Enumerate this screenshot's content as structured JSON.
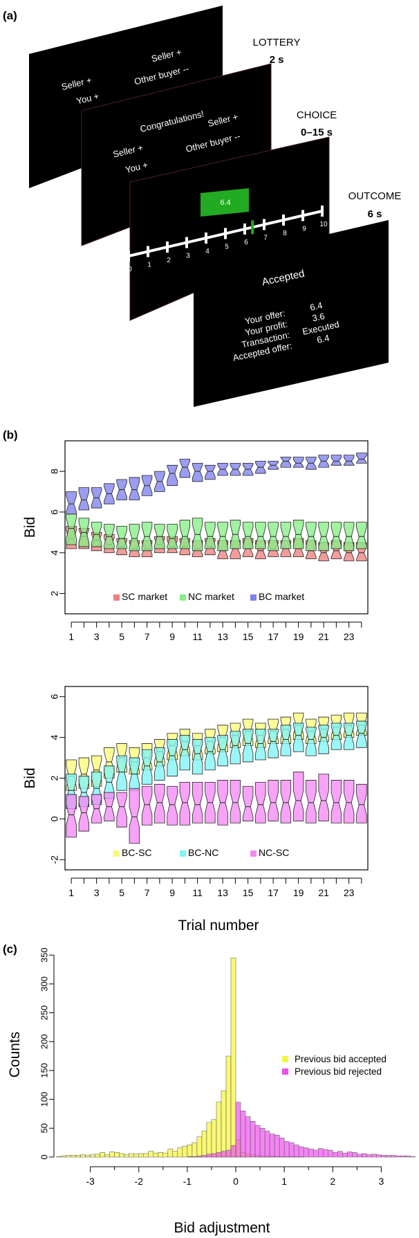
{
  "panel_a": {
    "label": "(a)",
    "stages": [
      {
        "name": "LOTTERY",
        "duration": "2 s"
      },
      {
        "name": "CHOICE",
        "duration": "0–15 s"
      },
      {
        "name": "OUTCOME",
        "duration": "6 s"
      }
    ],
    "screen_lottery": {
      "seller_1": "Seller +",
      "you": "You +",
      "seller_2": "Seller +",
      "other_buyer": "Other buyer --"
    },
    "screen_choice": {
      "header": "Congratulations!",
      "seller_1": "Seller +",
      "you": "You +",
      "seller_2": "Seller +",
      "other_buyer": "Other buyer --",
      "bid_box": "6.4",
      "scale_labels": [
        "0",
        "1",
        "2",
        "3",
        "4",
        "5",
        "6",
        "7",
        "8",
        "9",
        "10"
      ],
      "cursor_value": 6.4
    },
    "screen_outcome": {
      "header": "Accepted",
      "rows": [
        {
          "label": "Your offer:",
          "value": "6.4"
        },
        {
          "label": "Your profit:",
          "value": "3.6"
        },
        {
          "label": "Transaction:",
          "value": "Executed"
        },
        {
          "label": "Accepted offer:",
          "value": "6.4"
        }
      ]
    }
  },
  "panel_b": {
    "label": "(b)",
    "xlabel": "Trial number"
  },
  "panel_c": {
    "label": "(c)"
  },
  "colors": {
    "SC": "#f08080",
    "NC": "#86ee86",
    "BC": "#7f82ee",
    "BC-SC": "#fafa7a",
    "BC-NC": "#7ff5f5",
    "NC-SC": "#f589f5",
    "screen": "#000000",
    "green_box": "#22aa22",
    "accepted": "#f5f545",
    "rejected": "#f050f0"
  },
  "chart_data": [
    {
      "type": "boxplot",
      "id": "markets",
      "ylabel": "Bid",
      "ylim": [
        1,
        9.5
      ],
      "yticks": [
        2,
        4,
        6,
        8
      ],
      "x": [
        1,
        2,
        3,
        4,
        5,
        6,
        7,
        8,
        9,
        10,
        11,
        12,
        13,
        14,
        15,
        16,
        17,
        18,
        19,
        20,
        21,
        22,
        23,
        24
      ],
      "xticks": [
        1,
        3,
        5,
        7,
        9,
        11,
        13,
        15,
        17,
        19,
        21,
        23
      ],
      "legend_position": "bottom",
      "series": [
        {
          "name": "SC market",
          "key": "SC",
          "q1": [
            4.2,
            4.2,
            4.1,
            4.0,
            3.9,
            3.8,
            3.8,
            4.0,
            4.0,
            3.9,
            3.8,
            3.9,
            3.7,
            3.7,
            3.8,
            3.7,
            3.8,
            3.8,
            3.8,
            3.7,
            3.6,
            3.7,
            3.6,
            3.6
          ],
          "med": [
            4.7,
            4.8,
            4.6,
            4.4,
            4.3,
            4.2,
            4.2,
            4.4,
            4.3,
            4.3,
            4.2,
            4.3,
            4.1,
            4.2,
            4.2,
            4.1,
            4.2,
            4.2,
            4.2,
            4.1,
            4.0,
            4.1,
            4.0,
            4.0
          ],
          "q3": [
            5.3,
            5.2,
            5.0,
            4.9,
            4.7,
            4.6,
            4.6,
            4.8,
            4.8,
            4.7,
            4.6,
            4.7,
            4.6,
            4.6,
            4.7,
            4.6,
            4.6,
            4.6,
            4.7,
            4.6,
            4.5,
            4.6,
            4.5,
            4.5
          ]
        },
        {
          "name": "NC market",
          "key": "NC",
          "q1": [
            4.4,
            4.3,
            4.3,
            4.2,
            4.2,
            4.1,
            4.1,
            4.2,
            4.2,
            4.2,
            4.1,
            4.2,
            4.1,
            4.2,
            4.2,
            4.2,
            4.1,
            4.2,
            4.2,
            4.1,
            4.1,
            4.2,
            4.1,
            4.2
          ],
          "med": [
            5.2,
            5.0,
            4.9,
            4.8,
            4.7,
            4.7,
            4.8,
            4.8,
            4.7,
            4.8,
            4.9,
            4.8,
            4.8,
            4.9,
            4.8,
            4.8,
            4.8,
            4.8,
            4.9,
            4.8,
            4.8,
            4.8,
            4.8,
            4.8
          ],
          "q3": [
            5.9,
            5.7,
            5.5,
            5.4,
            5.3,
            5.4,
            5.5,
            5.4,
            5.4,
            5.6,
            5.7,
            5.5,
            5.5,
            5.6,
            5.5,
            5.5,
            5.5,
            5.5,
            5.6,
            5.5,
            5.5,
            5.5,
            5.5,
            5.5
          ]
        },
        {
          "name": "BC market",
          "key": "BC",
          "q1": [
            5.9,
            6.1,
            6.2,
            6.4,
            6.6,
            6.6,
            6.8,
            7.0,
            7.3,
            7.7,
            7.5,
            7.6,
            7.8,
            7.8,
            7.8,
            7.9,
            8.1,
            8.2,
            8.2,
            8.1,
            8.2,
            8.3,
            8.3,
            8.4
          ],
          "med": [
            6.4,
            6.6,
            6.7,
            6.9,
            7.1,
            7.1,
            7.3,
            7.5,
            7.9,
            8.2,
            8.0,
            8.0,
            8.1,
            8.1,
            8.1,
            8.2,
            8.3,
            8.5,
            8.4,
            8.4,
            8.5,
            8.5,
            8.5,
            8.6
          ],
          "q3": [
            7.0,
            7.2,
            7.2,
            7.4,
            7.6,
            7.7,
            7.8,
            8.0,
            8.3,
            8.6,
            8.4,
            8.3,
            8.4,
            8.4,
            8.4,
            8.5,
            8.5,
            8.7,
            8.7,
            8.7,
            8.8,
            8.8,
            8.8,
            8.9
          ]
        }
      ]
    },
    {
      "type": "boxplot",
      "id": "differences",
      "ylabel": "Bid",
      "ylim": [
        -2.5,
        6.5
      ],
      "yticks": [
        -2,
        0,
        2,
        4,
        6
      ],
      "x": [
        1,
        2,
        3,
        4,
        5,
        6,
        7,
        8,
        9,
        10,
        11,
        12,
        13,
        14,
        15,
        16,
        17,
        18,
        19,
        20,
        21,
        22,
        23,
        24
      ],
      "xticks": [
        1,
        3,
        5,
        7,
        9,
        11,
        13,
        15,
        17,
        19,
        21,
        23
      ],
      "legend_position": "bottom",
      "series": [
        {
          "name": "BC-SC",
          "key": "BC-SC",
          "q1": [
            1.4,
            1.5,
            1.6,
            2.0,
            2.3,
            2.2,
            2.4,
            2.6,
            2.9,
            3.1,
            2.9,
            3.2,
            3.3,
            3.5,
            3.6,
            3.5,
            3.7,
            3.7,
            3.9,
            3.7,
            3.8,
            3.9,
            4.0,
            4.1
          ],
          "med": [
            2.1,
            2.2,
            2.4,
            2.8,
            3.0,
            2.8,
            3.0,
            3.3,
            3.6,
            3.8,
            3.6,
            3.8,
            4.0,
            4.1,
            4.3,
            4.1,
            4.3,
            4.4,
            4.6,
            4.3,
            4.4,
            4.5,
            4.6,
            4.6
          ],
          "q3": [
            2.9,
            3.0,
            3.1,
            3.5,
            3.7,
            3.5,
            3.7,
            3.9,
            4.2,
            4.4,
            4.2,
            4.4,
            4.6,
            4.7,
            4.9,
            4.7,
            4.9,
            5.0,
            5.2,
            4.9,
            5.0,
            5.1,
            5.2,
            5.2
          ]
        },
        {
          "name": "BC-NC",
          "key": "BC-NC",
          "q1": [
            0.5,
            0.6,
            0.7,
            1.0,
            1.4,
            1.4,
            1.7,
            1.9,
            2.1,
            2.4,
            2.2,
            2.4,
            2.6,
            2.7,
            2.8,
            2.9,
            3.0,
            3.1,
            3.3,
            3.1,
            3.2,
            3.4,
            3.4,
            3.5
          ],
          "med": [
            1.4,
            1.3,
            1.5,
            1.8,
            2.3,
            2.2,
            2.6,
            2.8,
            3.1,
            3.4,
            3.2,
            3.3,
            3.4,
            3.6,
            3.7,
            3.7,
            3.8,
            3.9,
            4.1,
            3.9,
            4.0,
            4.1,
            4.1,
            4.2
          ],
          "q3": [
            2.2,
            2.1,
            2.3,
            2.6,
            3.1,
            3.0,
            3.4,
            3.5,
            3.9,
            4.1,
            3.9,
            4.0,
            4.1,
            4.3,
            4.4,
            4.4,
            4.4,
            4.6,
            4.7,
            4.5,
            4.6,
            4.7,
            4.7,
            4.8
          ]
        },
        {
          "name": "NC-SC",
          "key": "NC-SC",
          "q1": [
            -0.9,
            -0.6,
            -0.2,
            -0.1,
            -0.4,
            -1.2,
            -0.3,
            -0.2,
            -0.3,
            -0.3,
            -0.2,
            -0.2,
            -0.3,
            -0.2,
            -0.1,
            -0.2,
            -0.1,
            -0.2,
            -0.1,
            -0.2,
            -0.1,
            -0.2,
            -0.2,
            -0.2
          ],
          "med": [
            0.2,
            0.3,
            0.5,
            0.6,
            0.6,
            0.1,
            0.7,
            0.8,
            0.7,
            0.8,
            0.7,
            0.8,
            0.8,
            0.8,
            0.6,
            0.7,
            0.8,
            0.8,
            0.9,
            0.8,
            0.9,
            0.8,
            0.8,
            0.7
          ],
          "q3": [
            1.2,
            1.1,
            1.2,
            1.3,
            1.3,
            1.5,
            1.6,
            1.7,
            1.6,
            1.8,
            1.8,
            1.8,
            1.9,
            1.9,
            1.6,
            1.8,
            1.9,
            1.9,
            2.3,
            1.9,
            2.2,
            1.9,
            1.9,
            1.7
          ]
        }
      ]
    },
    {
      "type": "histogram",
      "id": "adjustment",
      "xlabel": "Bid adjustment",
      "ylabel": "Counts",
      "xlim": [
        -3.75,
        3.75
      ],
      "ylim": [
        0,
        355
      ],
      "xticks": [
        -3,
        -2,
        -1,
        0,
        1,
        2,
        3
      ],
      "yticks": [
        0,
        50,
        100,
        150,
        200,
        250,
        300,
        350
      ],
      "bin_width": 0.1,
      "legend_position": "right",
      "series": [
        {
          "name": "Previous bid accepted",
          "key": "accepted",
          "bin_starts": [
            -3.7,
            -3.6,
            -3.5,
            -3.4,
            -3.3,
            -3.2,
            -3.1,
            -3.0,
            -2.9,
            -2.8,
            -2.7,
            -2.6,
            -2.5,
            -2.4,
            -2.3,
            -2.2,
            -2.1,
            -2.0,
            -1.9,
            -1.8,
            -1.7,
            -1.6,
            -1.5,
            -1.4,
            -1.3,
            -1.2,
            -1.1,
            -1.0,
            -0.9,
            -0.8,
            -0.7,
            -0.6,
            -0.5,
            -0.4,
            -0.3,
            -0.2,
            -0.1,
            0.0,
            0.1,
            0.2,
            0.3,
            0.4,
            0.5,
            0.6,
            0.7,
            0.8,
            0.9,
            1.0,
            1.1,
            1.2,
            1.3,
            1.4,
            1.5,
            1.6,
            1.7,
            1.8,
            1.9,
            2.0,
            2.1,
            2.2,
            2.3,
            2.4,
            2.5,
            2.6,
            2.7,
            2.8,
            2.9,
            3.0,
            3.1,
            3.2,
            3.3,
            3.4,
            3.5,
            3.6
          ],
          "counts": [
            1,
            2,
            3,
            3,
            3,
            4,
            3,
            4,
            5,
            8,
            4,
            9,
            8,
            6,
            4,
            6,
            5,
            6,
            6,
            10,
            7,
            8,
            7,
            14,
            10,
            16,
            19,
            21,
            25,
            35,
            45,
            60,
            65,
            95,
            115,
            175,
            345,
            30,
            8,
            5,
            4,
            3,
            2,
            2,
            2,
            1,
            1,
            1,
            1,
            1,
            1,
            0,
            0,
            0,
            0,
            0,
            0,
            0,
            0,
            0,
            0,
            0,
            0,
            0,
            0,
            0,
            0,
            0,
            0,
            0,
            0,
            0,
            0,
            0
          ]
        },
        {
          "name": "Previous bid rejected",
          "key": "rejected",
          "bin_starts": [
            -3.7,
            -3.6,
            -3.5,
            -3.4,
            -3.3,
            -3.2,
            -3.1,
            -3.0,
            -2.9,
            -2.8,
            -2.7,
            -2.6,
            -2.5,
            -2.4,
            -2.3,
            -2.2,
            -2.1,
            -2.0,
            -1.9,
            -1.8,
            -1.7,
            -1.6,
            -1.5,
            -1.4,
            -1.3,
            -1.2,
            -1.1,
            -1.0,
            -0.9,
            -0.8,
            -0.7,
            -0.6,
            -0.5,
            -0.4,
            -0.3,
            -0.2,
            -0.1,
            0.0,
            0.1,
            0.2,
            0.3,
            0.4,
            0.5,
            0.6,
            0.7,
            0.8,
            0.9,
            1.0,
            1.1,
            1.2,
            1.3,
            1.4,
            1.5,
            1.6,
            1.7,
            1.8,
            1.9,
            2.0,
            2.1,
            2.2,
            2.3,
            2.4,
            2.5,
            2.6,
            2.7,
            2.8,
            2.9,
            3.0,
            3.1,
            3.2,
            3.3,
            3.4,
            3.5,
            3.6
          ],
          "counts": [
            0,
            0,
            0,
            0,
            0,
            0,
            0,
            0,
            0,
            0,
            0,
            0,
            0,
            0,
            0,
            0,
            0,
            0,
            0,
            0,
            0,
            0,
            0,
            0,
            0,
            0,
            0,
            1,
            1,
            2,
            3,
            5,
            6,
            8,
            10,
            12,
            20,
            95,
            80,
            70,
            62,
            55,
            50,
            45,
            40,
            38,
            33,
            27,
            25,
            21,
            18,
            16,
            14,
            12,
            15,
            13,
            12,
            8,
            10,
            7,
            9,
            8,
            5,
            6,
            4,
            5,
            4,
            3,
            3,
            3,
            2,
            2,
            2,
            1
          ]
        }
      ]
    }
  ]
}
